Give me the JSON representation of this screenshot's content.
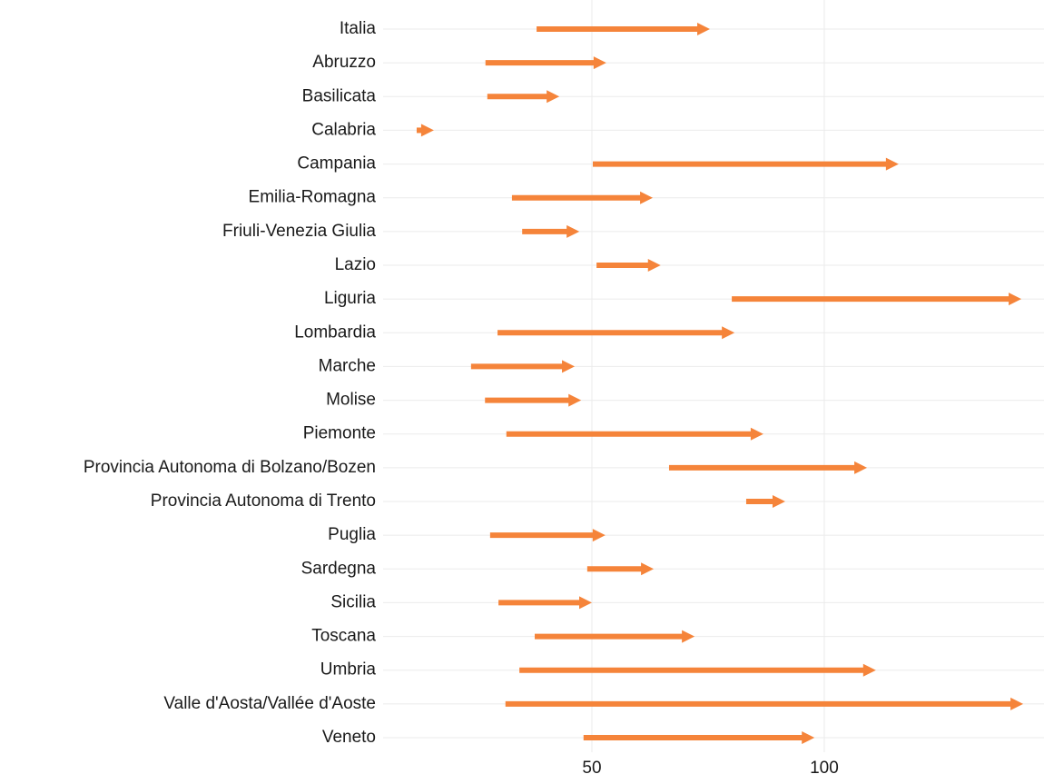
{
  "chart_data": {
    "type": "arrow",
    "categories": [
      "Italia",
      "Abruzzo",
      "Basilicata",
      "Calabria",
      "Campania",
      "Emilia-Romagna",
      "Friuli-Venezia Giulia",
      "Lazio",
      "Liguria",
      "Lombardia",
      "Marche",
      "Molise",
      "Piemonte",
      "Provincia Autonoma di Bolzano/Bozen",
      "Provincia Autonoma di Trento",
      "Puglia",
      "Sardegna",
      "Sicilia",
      "Toscana",
      "Umbria",
      "Valle d'Aosta/Vallée d'Aoste",
      "Veneto"
    ],
    "start": [
      38.1,
      27.1,
      27.5,
      12.3,
      50.2,
      32.8,
      35.0,
      51.0,
      80.1,
      29.7,
      24.0,
      27.0,
      31.6,
      66.6,
      83.2,
      28.1,
      49.0,
      29.9,
      37.7,
      34.4,
      31.4,
      48.2
    ],
    "end": [
      75.4,
      53.1,
      43.0,
      16.0,
      116.0,
      63.1,
      47.3,
      64.8,
      142.4,
      80.7,
      46.3,
      47.7,
      86.9,
      109.2,
      91.6,
      52.9,
      63.3,
      50.0,
      72.1,
      111.1,
      142.8,
      97.9
    ],
    "color": "#f5843a",
    "xlim": [
      5,
      147
    ],
    "xticks": [
      50,
      100
    ],
    "grid": true
  }
}
